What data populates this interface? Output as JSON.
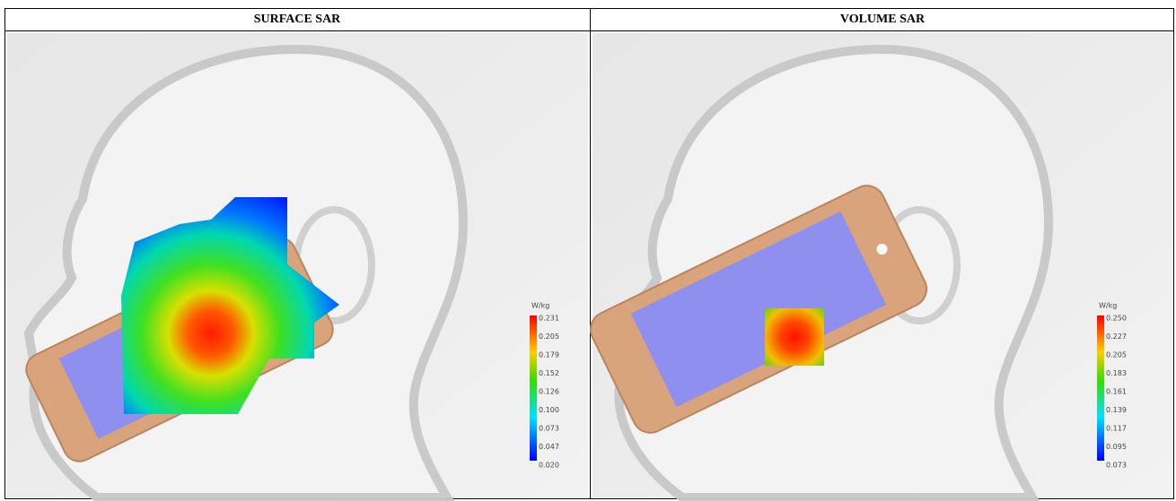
{
  "table": {
    "headers": [
      "SURFACE SAR",
      "VOLUME SAR"
    ],
    "panels": [
      {
        "unit": "W/kg",
        "scale": [
          "0.231",
          "0.205",
          "0.179",
          "0.152",
          "0.126",
          "0.100",
          "0.073",
          "0.047",
          "0.020"
        ]
      },
      {
        "unit": "W/kg",
        "scale": [
          "0.250",
          "0.227",
          "0.205",
          "0.183",
          "0.161",
          "0.139",
          "0.117",
          "0.095",
          "0.073"
        ]
      }
    ]
  }
}
